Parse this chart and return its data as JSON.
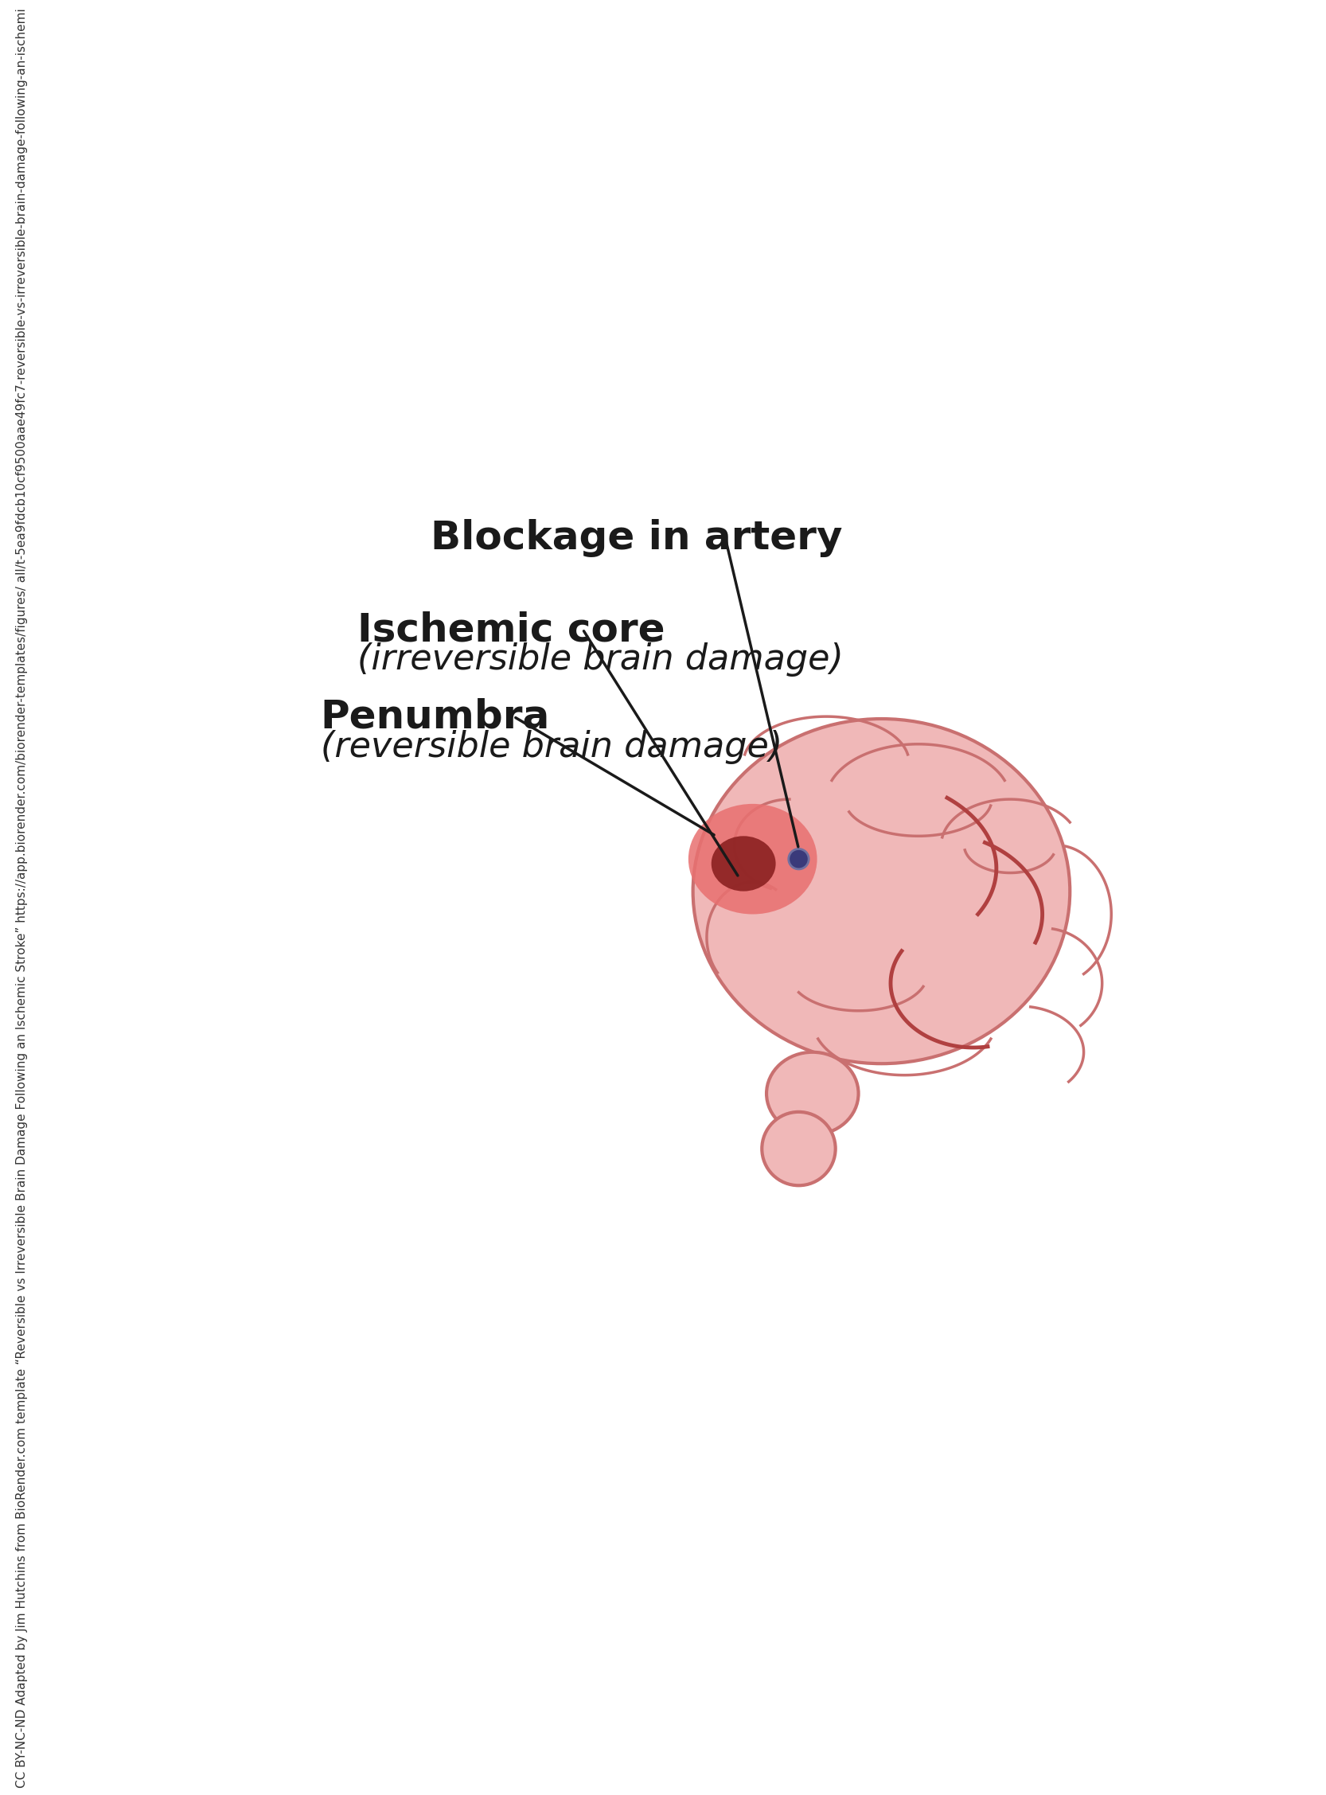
{
  "bg_color": "#ffffff",
  "brain_color": "#f0b8b8",
  "brain_outline_color": "#c97070",
  "penumbra_color": "#e87070",
  "core_color": "#8b2020",
  "blockage_color": "#3a3a7a",
  "label_blockage": "Blockage in artery",
  "label_core_bold": "Ischemic core",
  "label_core_italic": "(irreversible brain damage)",
  "label_penumbra_bold": "Penumbra",
  "label_penumbra_italic": "(reversible brain damage)",
  "watermark_lines": [
    "CC BY-NC-ND Adapted by Jim Hutchins from BioRender.com template “Reversible vs Irreversible",
    "Brain Damage Following an Ischemic Stroke” https://app.biorender.com/biorender-templates/figures/",
    "all/t-5ea9fdcb10cf9500aae49fc7-reversible-vs-irreversible-brain-damage-following-an-ischemi"
  ],
  "line_color": "#1a1a1a",
  "text_color": "#1a1a1a"
}
